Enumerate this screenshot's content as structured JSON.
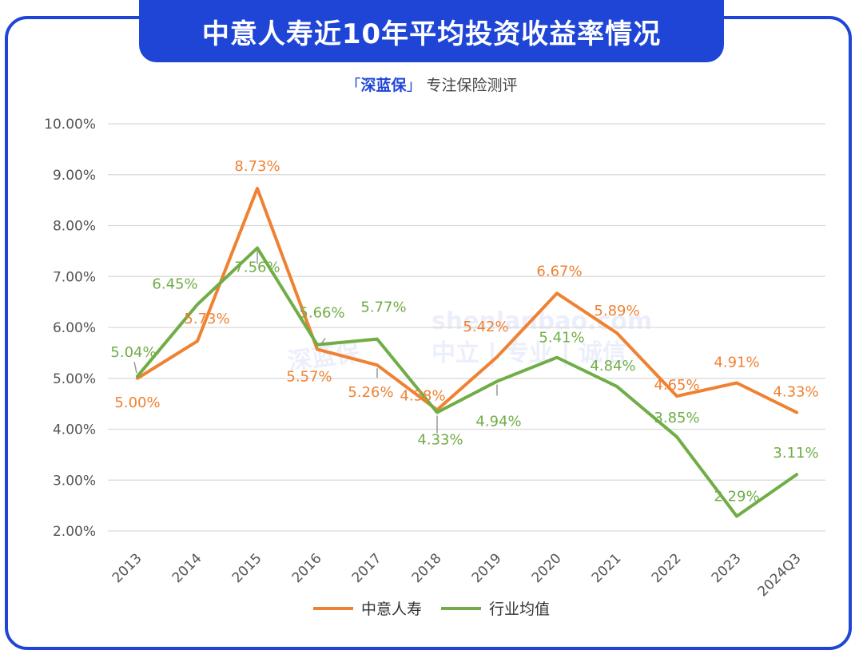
{
  "header": {
    "title": "中意人寿近10年平均投资收益率情况",
    "subtitle_bracket_open": "「",
    "subtitle_brand": "深蓝保",
    "subtitle_bracket_close": "」",
    "subtitle_rest": "专注保险测评"
  },
  "watermark": {
    "domain": "shenlanbao.com",
    "slogan": "中立 | 专业 | 诚信",
    "logo": "深蓝保"
  },
  "colors": {
    "accent": "#1f45d6",
    "series1": "#ef8232",
    "series2": "#70ad47",
    "grid": "#d9d9d9"
  },
  "chart_data": {
    "type": "line",
    "title": "中意人寿近10年平均投资收益率情况",
    "xlabel": "",
    "ylabel": "",
    "ylim": [
      2.0,
      10.0
    ],
    "yticks": [
      "10.00%",
      "9.00%",
      "8.00%",
      "7.00%",
      "6.00%",
      "5.00%",
      "4.00%",
      "3.00%",
      "2.00%"
    ],
    "categories": [
      "2013",
      "2014",
      "2015",
      "2016",
      "2017",
      "2018",
      "2019",
      "2020",
      "2021",
      "2022",
      "2023",
      "2024Q3"
    ],
    "legend_position": "bottom",
    "series": [
      {
        "name": "中意人寿",
        "values": [
          5.0,
          5.73,
          8.73,
          5.57,
          5.26,
          4.38,
          5.42,
          6.67,
          5.89,
          4.65,
          4.91,
          4.33
        ],
        "labels": [
          "5.00%",
          "5.73%",
          "8.73%",
          "5.57%",
          "5.26%",
          "4.38%",
          "5.42%",
          "6.67%",
          "5.89%",
          "4.65%",
          "4.91%",
          "4.33%"
        ]
      },
      {
        "name": "行业均值",
        "values": [
          5.04,
          6.45,
          7.56,
          5.66,
          5.77,
          4.33,
          4.94,
          5.41,
          4.84,
          3.85,
          2.29,
          3.11
        ],
        "labels": [
          "5.04%",
          "6.45%",
          "7.56%",
          "5.66%",
          "5.77%",
          "4.33%",
          "4.94%",
          "5.41%",
          "4.84%",
          "3.85%",
          "2.29%",
          "3.11%"
        ]
      }
    ]
  }
}
